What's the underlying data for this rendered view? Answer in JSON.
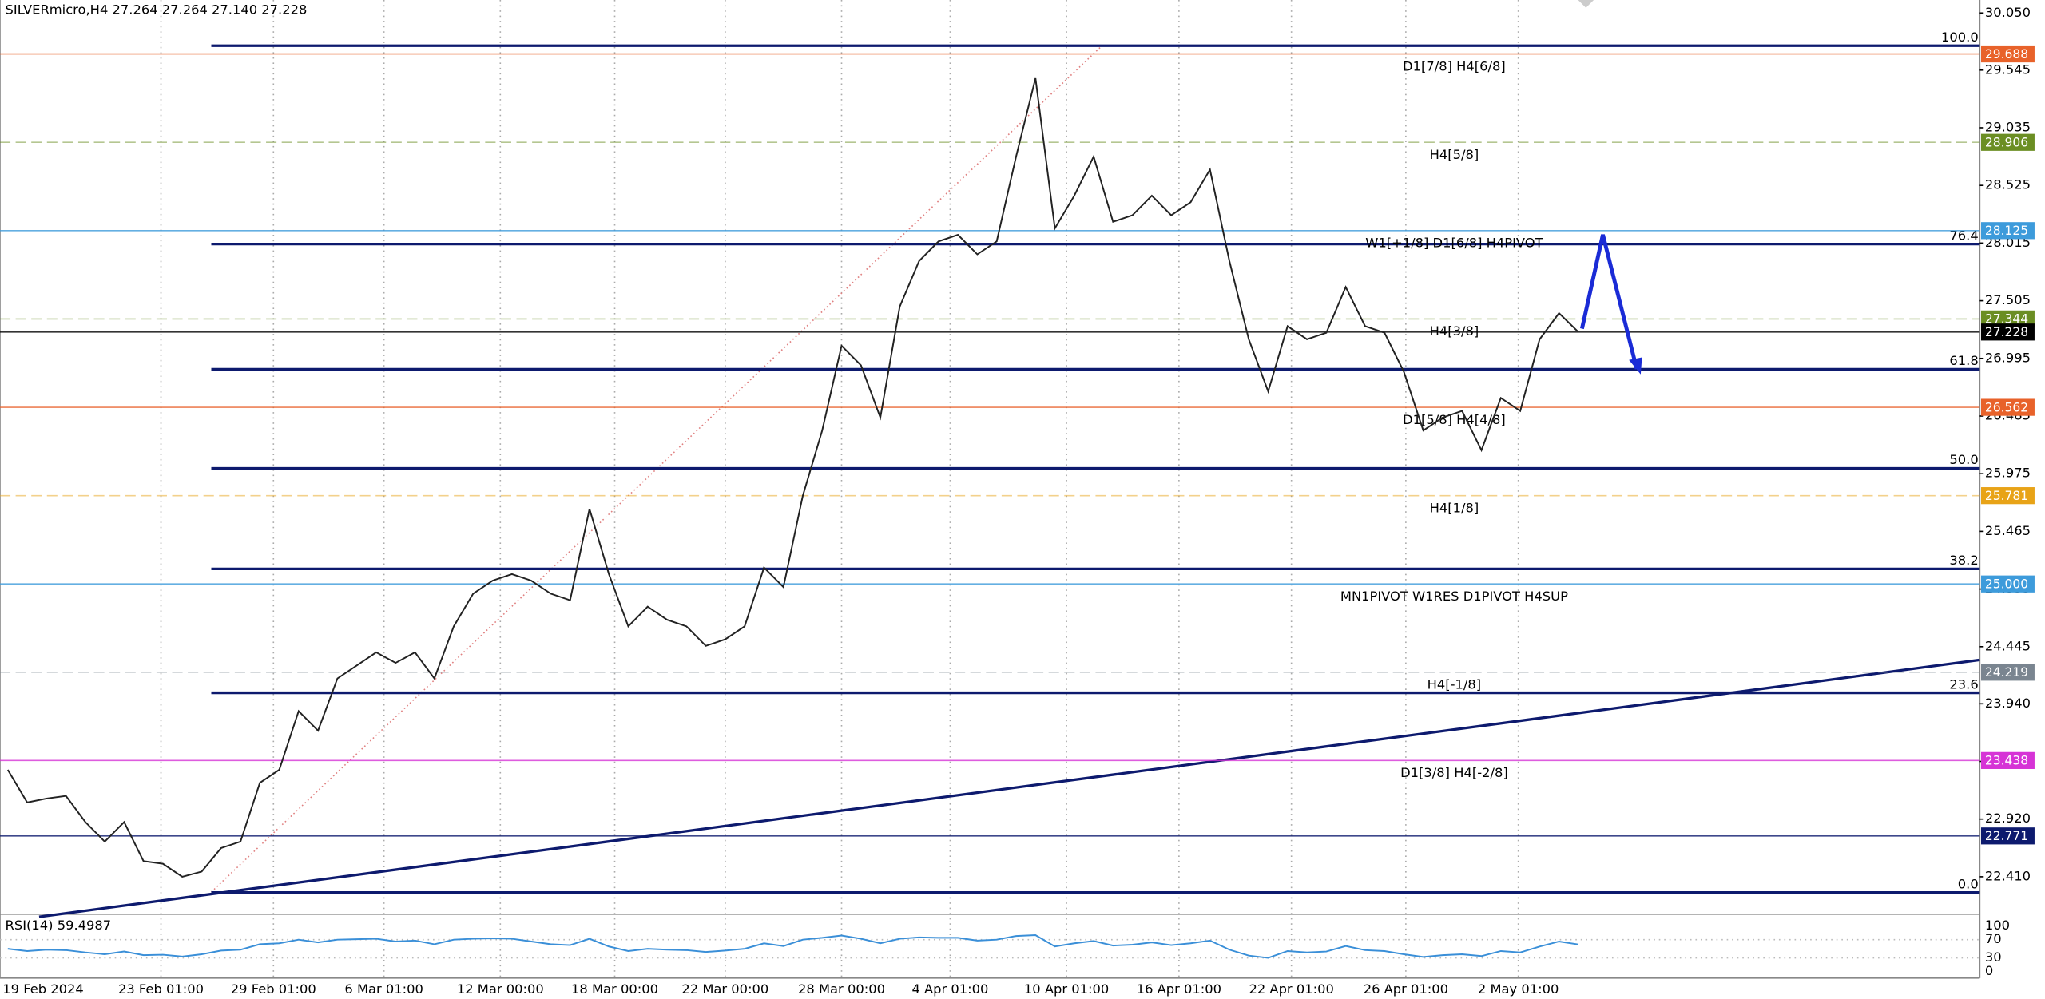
{
  "chart_data": {
    "type": "line",
    "title": "SILVERmicro,H4 27.264 27.264 27.140 27.228",
    "color": "#222222",
    "values": [
      23.356,
      23.067,
      23.102,
      23.125,
      22.894,
      22.721,
      22.894,
      22.548,
      22.525,
      22.41,
      22.456,
      22.664,
      22.721,
      23.241,
      23.356,
      23.875,
      23.702,
      24.164,
      24.279,
      24.395,
      24.302,
      24.395,
      24.164,
      24.625,
      24.914,
      25.029,
      25.087,
      25.029,
      24.914,
      24.856,
      25.664,
      25.087,
      24.625,
      24.799,
      24.683,
      24.625,
      24.452,
      24.51,
      24.625,
      25.145,
      24.972,
      25.78,
      26.357,
      27.107,
      26.934,
      26.472,
      27.453,
      27.857,
      28.03,
      28.088,
      27.915,
      28.03,
      28.78,
      29.473,
      28.145,
      28.434,
      28.78,
      28.203,
      28.261,
      28.434,
      28.261,
      28.376,
      28.665,
      27.857,
      27.164,
      26.703,
      27.28,
      27.164,
      27.222,
      27.626,
      27.28,
      27.222,
      26.876,
      26.357,
      26.472,
      26.53,
      26.183,
      26.645,
      26.53,
      27.164,
      27.395,
      27.228
    ],
    "xlim": [
      -0.2,
      101.7
    ],
    "xticks": [
      {
        "value": 0,
        "label": "19 Feb 2024"
      },
      {
        "value": 7.9,
        "label": "23 Feb 01:00"
      },
      {
        "value": 13.7,
        "label": "29 Feb 01:00"
      },
      {
        "value": 19.4,
        "label": "6 Mar 01:00"
      },
      {
        "value": 25.4,
        "label": "12 Mar 00:00"
      },
      {
        "value": 31.3,
        "label": "18 Mar 00:00"
      },
      {
        "value": 37,
        "label": "22 Mar 00:00"
      },
      {
        "value": 43,
        "label": "28 Mar 00:00"
      },
      {
        "value": 48.6,
        "label": "4 Apr 01:00"
      },
      {
        "value": 54.6,
        "label": "10 Apr 01:00"
      },
      {
        "value": 60.4,
        "label": "16 Apr 01:00"
      },
      {
        "value": 66.2,
        "label": "22 Apr 01:00"
      },
      {
        "value": 72.1,
        "label": "26 Apr 01:00"
      },
      {
        "value": 77.9,
        "label": "2 May 01:00"
      }
    ],
    "ylim": [
      22.09,
      30.165
    ],
    "yticks": [
      {
        "value": 30.05,
        "label": "30.050"
      },
      {
        "value": 29.545,
        "label": "29.545"
      },
      {
        "value": 29.035,
        "label": "29.035"
      },
      {
        "value": 28.525,
        "label": "28.525"
      },
      {
        "value": 28.015,
        "label": "28.015"
      },
      {
        "value": 27.505,
        "label": "27.505"
      },
      {
        "value": 26.995,
        "label": "26.995"
      },
      {
        "value": 26.485,
        "label": "26.485"
      },
      {
        "value": 25.975,
        "label": "25.975"
      },
      {
        "value": 25.465,
        "label": "25.465"
      },
      {
        "value": 24.955,
        "label": "24.955"
      },
      {
        "value": 24.445,
        "label": "24.445"
      },
      {
        "value": 23.94,
        "label": "23.940"
      },
      {
        "value": 23.43,
        "label": "23.430"
      },
      {
        "value": 22.92,
        "label": "22.920"
      },
      {
        "value": 22.41,
        "label": "22.410"
      }
    ],
    "levels": [
      {
        "price": {
          "value": 29.688,
          "label": "29.688"
        },
        "text": "D1[7/8] H4[6/8]",
        "color": "#e8622a",
        "dashed": false
      },
      {
        "price": {
          "value": 28.906,
          "label": "28.906"
        },
        "text": "H4[5/8]",
        "color": "#6b8e23",
        "dashed": true
      },
      {
        "price": {
          "value": 28.125,
          "label": "28.125"
        },
        "text": "W1[+1/8] D1[6/8] H4PIVOT",
        "color": "#3d9bdb",
        "dashed": false
      },
      {
        "price": {
          "value": 27.344,
          "label": "27.344"
        },
        "text": "H4[3/8]",
        "color": "#6b8e23",
        "dashed": true
      },
      {
        "price": {
          "value": 27.228,
          "label": "27.228"
        },
        "color": "#000000",
        "dashed": false
      },
      {
        "price": {
          "value": 26.562,
          "label": "26.562"
        },
        "text": "D1[5/8] H4[4/8]",
        "color": "#e8622a",
        "dashed": false
      },
      {
        "price": {
          "value": 25.781,
          "label": "25.781"
        },
        "text": "H4[1/8]",
        "color": "#e8a317",
        "dashed": true
      },
      {
        "price": {
          "value": 25,
          "label": "25.000"
        },
        "text": "MN1PIVOT W1RES D1PIVOT H4SUP",
        "color": "#3d9bdb",
        "dashed": false
      },
      {
        "price": {
          "value": 24.219,
          "label": "24.219"
        },
        "text": "H4[-1/8]",
        "color": "#7a8590",
        "dashed": true
      },
      {
        "price": {
          "value": 23.438,
          "label": "23.438"
        },
        "text": "D1[3/8] H4[-2/8]",
        "color": "#d633d6",
        "dashed": false
      },
      {
        "price": {
          "value": 22.771,
          "label": "22.771"
        },
        "color": "#0d1a6e",
        "dashed": false
      }
    ],
    "fibo": [
      {
        "label": "100.0",
        "price": 29.761
      },
      {
        "label": "76.4",
        "price": 28.006
      },
      {
        "label": "61.8",
        "price": 26.899
      },
      {
        "label": "50.0",
        "price": 26.022
      },
      {
        "label": "38.2",
        "price": 25.133
      },
      {
        "label": "23.6",
        "price": 24.037
      },
      {
        "label": "0.0",
        "price": 22.271
      }
    ],
    "rsi": {
      "label": "RSI(14) 59.4987",
      "color": "#3a8fd8",
      "ylim": [
        -14.3,
        120
      ],
      "yticks": [
        100,
        70,
        30,
        0
      ],
      "values": [
        50,
        45,
        48,
        47,
        42,
        38,
        44,
        36,
        37,
        33,
        38,
        46,
        48,
        60,
        62,
        70,
        64,
        70,
        71,
        72,
        66,
        68,
        60,
        70,
        72,
        73,
        72,
        66,
        60,
        58,
        72,
        55,
        45,
        50,
        48,
        47,
        43,
        46,
        50,
        62,
        56,
        70,
        74,
        79,
        72,
        62,
        72,
        75,
        74,
        74,
        68,
        70,
        78,
        80,
        55,
        62,
        67,
        57,
        59,
        64,
        58,
        62,
        68,
        48,
        35,
        30,
        45,
        42,
        44,
        56,
        47,
        45,
        38,
        32,
        36,
        38,
        34,
        45,
        42,
        55,
        66,
        59.4987
      ]
    }
  }
}
